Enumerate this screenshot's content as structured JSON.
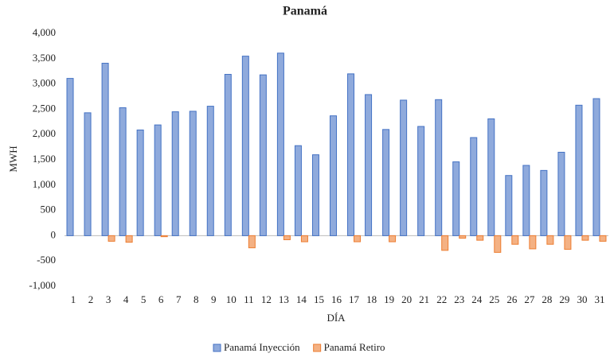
{
  "chart_data": {
    "type": "bar",
    "title": "Panamá",
    "x_label": "DÍA",
    "y_label": "MWH",
    "categories": [
      "1",
      "2",
      "3",
      "4",
      "5",
      "6",
      "7",
      "8",
      "9",
      "10",
      "11",
      "12",
      "13",
      "14",
      "15",
      "16",
      "17",
      "18",
      "19",
      "20",
      "21",
      "22",
      "23",
      "24",
      "25",
      "26",
      "27",
      "28",
      "29",
      "30",
      "31"
    ],
    "series": [
      {
        "name": "Panamá Inyección",
        "color": "#8faadc",
        "stroke": "#4472c4",
        "values": [
          3110,
          2430,
          3410,
          2530,
          2090,
          2190,
          2450,
          2460,
          2560,
          3190,
          3550,
          3180,
          3610,
          1780,
          1600,
          2370,
          3200,
          2790,
          2100,
          2680,
          2160,
          2690,
          1460,
          1940,
          2310,
          1190,
          1390,
          1290,
          1650,
          2580,
          2710
        ]
      },
      {
        "name": "Panamá Retiro",
        "color": "#f4b183",
        "stroke": "#ed7d31",
        "values": [
          0,
          0,
          -110,
          -130,
          0,
          -20,
          0,
          0,
          0,
          0,
          -240,
          0,
          -80,
          -120,
          0,
          0,
          -120,
          0,
          -120,
          0,
          0,
          -290,
          -50,
          -90,
          -330,
          -170,
          -260,
          -170,
          -270,
          -90,
          -110
        ]
      }
    ],
    "ylim": [
      -1000,
      4000
    ],
    "yticks": [
      {
        "value": -1000,
        "label": "-1,000"
      },
      -500,
      0,
      500,
      {
        "value": 1000,
        "label": "1,000"
      },
      {
        "value": 1500,
        "label": "1,500"
      },
      {
        "value": 2000,
        "label": "2,000"
      },
      {
        "value": 2500,
        "label": "2,500"
      },
      {
        "value": 3000,
        "label": "3,000"
      },
      {
        "value": 3500,
        "label": "3,500"
      },
      {
        "value": 4000,
        "label": "4,000"
      }
    ],
    "grid": false,
    "legend": "bottom"
  }
}
